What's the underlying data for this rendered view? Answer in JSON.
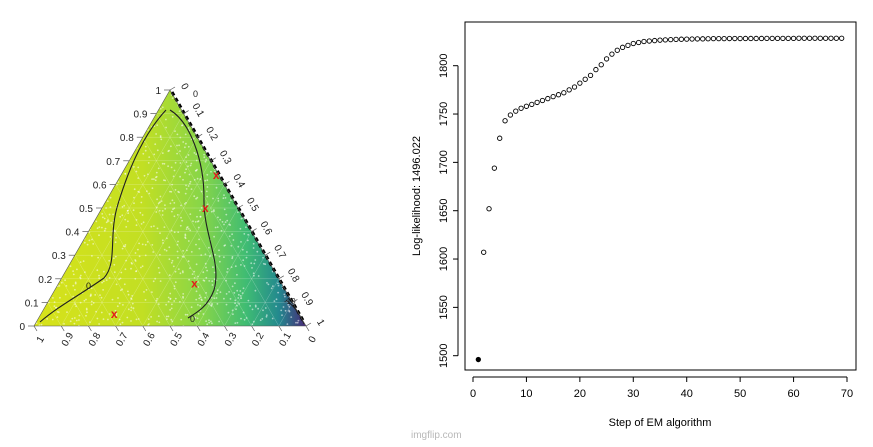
{
  "watermark": "imgflip.com",
  "chart_data": [
    {
      "type": "ternary",
      "background_colormap": "viridis",
      "contour_labels": [
        "0",
        "0",
        "0",
        "-10"
      ],
      "point_markers": [
        {
          "a": 0.64,
          "b": 0.01,
          "c": 0.35,
          "label": "x",
          "color": "#e31a1c"
        },
        {
          "a": 0.5,
          "b": 0.12,
          "c": 0.38,
          "label": "x",
          "color": "#e31a1c"
        },
        {
          "a": 0.18,
          "b": 0.32,
          "c": 0.5,
          "label": "x",
          "color": "#e31a1c"
        },
        {
          "a": 0.05,
          "b": 0.68,
          "c": 0.27,
          "label": "x",
          "color": "#e31a1c"
        }
      ],
      "left_ticks": [
        "0",
        "0.1",
        "0.2",
        "0.3",
        "0.4",
        "0.5",
        "0.6",
        "0.7",
        "0.8",
        "0.9",
        "1"
      ],
      "right_ticks": [
        "0",
        "0.1",
        "0.2",
        "0.3",
        "0.4",
        "0.5",
        "0.6",
        "0.7",
        "0.8",
        "0.9",
        "1"
      ],
      "bottom_ticks": [
        "1",
        "0.9",
        "0.8",
        "0.7",
        "0.6",
        "0.5",
        "0.4",
        "0.3",
        "0.2",
        "0.1",
        "0"
      ]
    },
    {
      "type": "scatter",
      "xlabel": "Step of EM algorithm",
      "ylabel": "Log-likelihood: 1496.022",
      "xlim": [
        0,
        70
      ],
      "ylim": [
        1495,
        1830
      ],
      "xticks": [
        0,
        10,
        20,
        30,
        40,
        50,
        60,
        70
      ],
      "yticks": [
        1500,
        1550,
        1600,
        1650,
        1700,
        1750,
        1800
      ],
      "grid": false,
      "highlighted_point": {
        "x": 1,
        "y": 1496.022
      },
      "x": [
        1,
        2,
        3,
        4,
        5,
        6,
        7,
        8,
        9,
        10,
        11,
        12,
        13,
        14,
        15,
        16,
        17,
        18,
        19,
        20,
        21,
        22,
        23,
        24,
        25,
        26,
        27,
        28,
        29,
        30,
        31,
        32,
        33,
        34,
        35,
        36,
        37,
        38,
        39,
        40,
        41,
        42,
        43,
        44,
        45,
        46,
        47,
        48,
        49,
        50,
        51,
        52,
        53,
        54,
        55,
        56,
        57,
        58,
        59,
        60,
        61,
        62,
        63,
        64,
        65,
        66,
        67,
        68,
        69
      ],
      "y": [
        1496.022,
        1607,
        1652,
        1694,
        1725,
        1743,
        1749,
        1753,
        1756,
        1758,
        1760,
        1762,
        1764,
        1766,
        1768,
        1770,
        1772,
        1775,
        1778,
        1782,
        1786,
        1790,
        1796,
        1801,
        1807,
        1812,
        1816,
        1819,
        1821,
        1823,
        1824,
        1825,
        1825.5,
        1826,
        1826.4,
        1826.7,
        1827,
        1827.2,
        1827.4,
        1827.5,
        1827.6,
        1827.7,
        1827.8,
        1827.9,
        1828,
        1828,
        1828,
        1828.1,
        1828.1,
        1828.1,
        1828.2,
        1828.2,
        1828.2,
        1828.2,
        1828.3,
        1828.3,
        1828.3,
        1828.3,
        1828.3,
        1828.3,
        1828.4,
        1828.4,
        1828.4,
        1828.4,
        1828.4,
        1828.4,
        1828.4,
        1828.4,
        1828.4
      ]
    }
  ]
}
